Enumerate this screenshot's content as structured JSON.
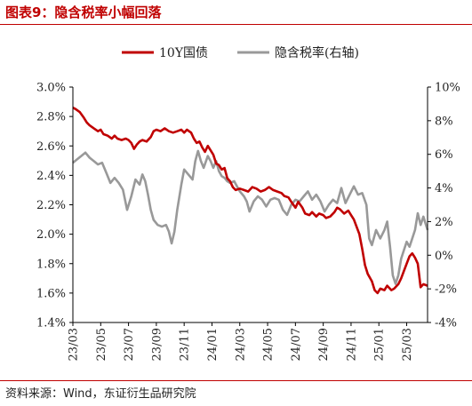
{
  "header": {
    "title": "图表9：隐含税率小幅回落"
  },
  "footer": {
    "source": "资料来源：Wind，东证衍生品研究院"
  },
  "chart_data": {
    "type": "line",
    "title": "",
    "xlabel": "",
    "ylabel": "",
    "legend_position": "top-center",
    "grid": false,
    "x_tick_labels": [
      "23/03",
      "23/05",
      "23/07",
      "23/09",
      "23/11",
      "24/01",
      "24/03",
      "24/05",
      "24/07",
      "24/09",
      "24/11",
      "25/01",
      "25/03"
    ],
    "y_left": {
      "ticks": [
        "1.4%",
        "1.6%",
        "1.8%",
        "2.0%",
        "2.2%",
        "2.4%",
        "2.6%",
        "2.8%",
        "3.0%"
      ],
      "min": 1.4,
      "max": 3.0
    },
    "y_right": {
      "ticks": [
        "-4%",
        "-2%",
        "0%",
        "2%",
        "4%",
        "6%",
        "8%",
        "10%"
      ],
      "min": -4,
      "max": 10
    },
    "x_months_range": [
      0,
      25.5
    ],
    "series": [
      {
        "name": "10Y国债",
        "axis": "left",
        "color": "#C00000",
        "points": [
          [
            0,
            2.86
          ],
          [
            0.2,
            2.85
          ],
          [
            0.5,
            2.83
          ],
          [
            0.8,
            2.79
          ],
          [
            1.0,
            2.76
          ],
          [
            1.2,
            2.74
          ],
          [
            1.5,
            2.72
          ],
          [
            1.8,
            2.7
          ],
          [
            2.0,
            2.71
          ],
          [
            2.2,
            2.68
          ],
          [
            2.5,
            2.67
          ],
          [
            2.8,
            2.65
          ],
          [
            3.0,
            2.67
          ],
          [
            3.2,
            2.65
          ],
          [
            3.5,
            2.64
          ],
          [
            3.8,
            2.65
          ],
          [
            4.0,
            2.64
          ],
          [
            4.2,
            2.62
          ],
          [
            4.4,
            2.58
          ],
          [
            4.6,
            2.61
          ],
          [
            4.8,
            2.63
          ],
          [
            5.0,
            2.64
          ],
          [
            5.3,
            2.63
          ],
          [
            5.6,
            2.66
          ],
          [
            5.8,
            2.7
          ],
          [
            6.0,
            2.71
          ],
          [
            6.3,
            2.7
          ],
          [
            6.6,
            2.72
          ],
          [
            6.9,
            2.7
          ],
          [
            7.2,
            2.69
          ],
          [
            7.5,
            2.7
          ],
          [
            7.8,
            2.71
          ],
          [
            8.0,
            2.69
          ],
          [
            8.2,
            2.71
          ],
          [
            8.5,
            2.69
          ],
          [
            8.7,
            2.65
          ],
          [
            8.9,
            2.62
          ],
          [
            9.1,
            2.63
          ],
          [
            9.3,
            2.59
          ],
          [
            9.5,
            2.56
          ],
          [
            9.7,
            2.6
          ],
          [
            9.9,
            2.57
          ],
          [
            10.1,
            2.54
          ],
          [
            10.3,
            2.48
          ],
          [
            10.5,
            2.47
          ],
          [
            10.7,
            2.44
          ],
          [
            10.9,
            2.45
          ],
          [
            11.1,
            2.38
          ],
          [
            11.3,
            2.36
          ],
          [
            11.5,
            2.32
          ],
          [
            11.7,
            2.3
          ],
          [
            12.0,
            2.31
          ],
          [
            12.3,
            2.3
          ],
          [
            12.6,
            2.29
          ],
          [
            12.9,
            2.32
          ],
          [
            13.2,
            2.31
          ],
          [
            13.5,
            2.29
          ],
          [
            13.8,
            2.3
          ],
          [
            14.1,
            2.32
          ],
          [
            14.4,
            2.3
          ],
          [
            14.7,
            2.29
          ],
          [
            15.0,
            2.28
          ],
          [
            15.2,
            2.26
          ],
          [
            15.5,
            2.25
          ],
          [
            15.7,
            2.22
          ],
          [
            16.0,
            2.18
          ],
          [
            16.2,
            2.22
          ],
          [
            16.5,
            2.18
          ],
          [
            16.7,
            2.14
          ],
          [
            17.0,
            2.13
          ],
          [
            17.2,
            2.15
          ],
          [
            17.5,
            2.12
          ],
          [
            17.7,
            2.14
          ],
          [
            18.0,
            2.13
          ],
          [
            18.2,
            2.11
          ],
          [
            18.5,
            2.12
          ],
          [
            18.8,
            2.15
          ],
          [
            19.0,
            2.18
          ],
          [
            19.2,
            2.17
          ],
          [
            19.5,
            2.14
          ],
          [
            19.8,
            2.16
          ],
          [
            20.0,
            2.13
          ],
          [
            20.2,
            2.1
          ],
          [
            20.4,
            2.05
          ],
          [
            20.6,
            2.0
          ],
          [
            20.8,
            1.9
          ],
          [
            21.0,
            1.79
          ],
          [
            21.2,
            1.73
          ],
          [
            21.5,
            1.68
          ],
          [
            21.7,
            1.62
          ],
          [
            21.9,
            1.6
          ],
          [
            22.1,
            1.63
          ],
          [
            22.4,
            1.62
          ],
          [
            22.6,
            1.65
          ],
          [
            22.9,
            1.62
          ],
          [
            23.1,
            1.63
          ],
          [
            23.4,
            1.66
          ],
          [
            23.6,
            1.7
          ],
          [
            23.8,
            1.75
          ],
          [
            24.0,
            1.8
          ],
          [
            24.2,
            1.85
          ],
          [
            24.4,
            1.87
          ],
          [
            24.6,
            1.84
          ],
          [
            24.8,
            1.8
          ],
          [
            25.0,
            1.64
          ],
          [
            25.2,
            1.66
          ],
          [
            25.5,
            1.65
          ]
        ]
      },
      {
        "name": "隐含税率(右轴)",
        "axis": "right",
        "color": "#999999",
        "points": [
          [
            0,
            5.5
          ],
          [
            0.3,
            5.7
          ],
          [
            0.6,
            5.9
          ],
          [
            0.9,
            6.1
          ],
          [
            1.2,
            5.8
          ],
          [
            1.5,
            5.6
          ],
          [
            1.8,
            5.4
          ],
          [
            2.1,
            5.5
          ],
          [
            2.4,
            4.9
          ],
          [
            2.7,
            4.3
          ],
          [
            3.0,
            4.6
          ],
          [
            3.3,
            4.3
          ],
          [
            3.6,
            3.9
          ],
          [
            3.9,
            2.7
          ],
          [
            4.2,
            3.5
          ],
          [
            4.5,
            4.5
          ],
          [
            4.8,
            4.2
          ],
          [
            5.0,
            4.8
          ],
          [
            5.2,
            4.4
          ],
          [
            5.4,
            3.6
          ],
          [
            5.6,
            2.7
          ],
          [
            5.8,
            2.1
          ],
          [
            6.1,
            1.8
          ],
          [
            6.4,
            1.7
          ],
          [
            6.7,
            1.8
          ],
          [
            6.9,
            1.4
          ],
          [
            7.1,
            0.7
          ],
          [
            7.3,
            1.4
          ],
          [
            7.5,
            2.7
          ],
          [
            7.8,
            4.2
          ],
          [
            8.0,
            5.1
          ],
          [
            8.3,
            4.8
          ],
          [
            8.6,
            4.5
          ],
          [
            8.8,
            5.6
          ],
          [
            9.0,
            6.2
          ],
          [
            9.2,
            5.6
          ],
          [
            9.4,
            5.2
          ],
          [
            9.7,
            5.9
          ],
          [
            9.9,
            5.6
          ],
          [
            10.1,
            5.2
          ],
          [
            10.3,
            5.6
          ],
          [
            10.5,
            5.0
          ],
          [
            10.7,
            4.7
          ],
          [
            10.9,
            4.6
          ],
          [
            11.1,
            4.4
          ],
          [
            11.3,
            4.3
          ],
          [
            11.6,
            4.4
          ],
          [
            11.8,
            4.1
          ],
          [
            12.0,
            3.8
          ],
          [
            12.3,
            3.5
          ],
          [
            12.5,
            3.2
          ],
          [
            12.7,
            2.6
          ],
          [
            13.0,
            3.2
          ],
          [
            13.3,
            3.5
          ],
          [
            13.6,
            3.3
          ],
          [
            13.9,
            2.9
          ],
          [
            14.2,
            3.3
          ],
          [
            14.5,
            3.4
          ],
          [
            14.8,
            3.3
          ],
          [
            15.1,
            2.7
          ],
          [
            15.4,
            2.4
          ],
          [
            15.7,
            3.0
          ],
          [
            16.0,
            3.3
          ],
          [
            16.3,
            3.2
          ],
          [
            16.6,
            3.5
          ],
          [
            16.9,
            3.8
          ],
          [
            17.2,
            3.3
          ],
          [
            17.5,
            3.6
          ],
          [
            17.8,
            3.2
          ],
          [
            18.1,
            2.6
          ],
          [
            18.4,
            3.0
          ],
          [
            18.7,
            3.3
          ],
          [
            19.0,
            3.1
          ],
          [
            19.3,
            4.0
          ],
          [
            19.6,
            3.1
          ],
          [
            19.9,
            3.6
          ],
          [
            20.2,
            4.1
          ],
          [
            20.5,
            3.6
          ],
          [
            20.8,
            3.7
          ],
          [
            21.1,
            3.0
          ],
          [
            21.3,
            1.0
          ],
          [
            21.5,
            0.6
          ],
          [
            21.8,
            1.5
          ],
          [
            22.1,
            1.0
          ],
          [
            22.4,
            1.5
          ],
          [
            22.6,
            2.0
          ],
          [
            22.8,
            0.5
          ],
          [
            23.0,
            -1.2
          ],
          [
            23.2,
            -1.7
          ],
          [
            23.4,
            -1.2
          ],
          [
            23.6,
            -0.2
          ],
          [
            23.8,
            0.3
          ],
          [
            24.0,
            0.8
          ],
          [
            24.2,
            0.5
          ],
          [
            24.4,
            1.0
          ],
          [
            24.6,
            1.5
          ],
          [
            24.8,
            2.5
          ],
          [
            25.0,
            1.8
          ],
          [
            25.2,
            2.3
          ],
          [
            25.5,
            1.5
          ]
        ]
      }
    ]
  }
}
